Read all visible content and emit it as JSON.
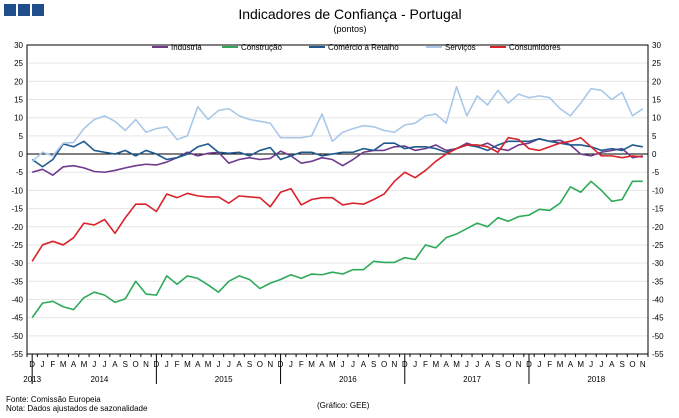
{
  "header": {
    "title": "Indicadores de Confiança - Portugal",
    "subtitle": "(pontos)"
  },
  "footer": {
    "source": "Fonte: Comissão Europeia",
    "note": "Nota: Dados ajustados de sazonalidade",
    "credit": "(Gráfico: GEE)"
  },
  "chart_data": {
    "type": "line",
    "title": "Indicadores de Confiança - Portugal",
    "ylabel": "(pontos)",
    "ylim": [
      -55,
      30
    ],
    "yticks": [
      30,
      25,
      20,
      15,
      10,
      5,
      0,
      -5,
      -10,
      -15,
      -20,
      -25,
      -30,
      -35,
      -40,
      -45,
      -50,
      -55
    ],
    "grid": true,
    "legend_position": "top",
    "month_labels": [
      "D",
      "J",
      "F",
      "M",
      "A",
      "M",
      "J",
      "J",
      "A",
      "S",
      "O",
      "N",
      "D",
      "J",
      "F",
      "M",
      "A",
      "M",
      "J",
      "J",
      "A",
      "S",
      "O",
      "N",
      "D",
      "J",
      "F",
      "M",
      "A",
      "M",
      "J",
      "J",
      "A",
      "S",
      "O",
      "N",
      "D",
      "J",
      "F",
      "M",
      "A",
      "M",
      "J",
      "J",
      "A",
      "S",
      "O",
      "N",
      "D",
      "J",
      "F",
      "M",
      "A",
      "M",
      "J",
      "J",
      "A",
      "S",
      "O",
      "N"
    ],
    "year_labels": [
      {
        "label": "2013",
        "index": 0
      },
      {
        "label": "2014",
        "index": 6.5
      },
      {
        "label": "2015",
        "index": 18.5
      },
      {
        "label": "2016",
        "index": 30.5
      },
      {
        "label": "2017",
        "index": 42.5
      },
      {
        "label": "2018",
        "index": 54.5
      }
    ],
    "year_separators": [
      0.5,
      12.5,
      24.5,
      36.5,
      48.5
    ],
    "series": [
      {
        "name": "Indústria",
        "color": "#6f3a8c",
        "values": [
          -5.0,
          -4.2,
          -5.8,
          -3.5,
          -3.2,
          -3.8,
          -4.8,
          -5.0,
          -4.5,
          -3.8,
          -3.2,
          -2.8,
          -3.0,
          -2.2,
          -1.0,
          0.5,
          -0.5,
          0.2,
          0.5,
          -2.5,
          -1.5,
          -1.0,
          -1.5,
          -1.2,
          0.8,
          -0.5,
          -2.5,
          -2.0,
          -1.0,
          -1.5,
          -3.2,
          -1.5,
          0.5,
          1.0,
          1.0,
          2.0,
          2.2,
          1.0,
          1.5,
          2.5,
          1.0,
          1.5,
          3.0,
          2.0,
          3.0,
          1.5,
          1.0,
          2.5,
          3.0,
          4.2,
          3.5,
          3.8,
          2.5,
          0.0,
          -0.5,
          0.5,
          1.0,
          1.5,
          -1.0,
          -0.5
        ]
      },
      {
        "name": "Construção",
        "color": "#2eaa5a",
        "values": [
          -45.0,
          -41.0,
          -40.5,
          -42.0,
          -42.8,
          -39.5,
          -38.0,
          -38.8,
          -40.8,
          -39.8,
          -35.0,
          -38.5,
          -38.8,
          -33.5,
          -35.8,
          -33.5,
          -34.2,
          -36.0,
          -38.0,
          -35.0,
          -33.5,
          -34.5,
          -37.0,
          -35.5,
          -34.5,
          -33.2,
          -34.2,
          -33.0,
          -33.2,
          -32.5,
          -33.0,
          -31.8,
          -31.8,
          -29.5,
          -29.8,
          -29.8,
          -28.5,
          -29.0,
          -25.0,
          -25.8,
          -23.0,
          -22.0,
          -20.5,
          -19.0,
          -20.0,
          -17.5,
          -18.5,
          -17.2,
          -16.8,
          -15.2,
          -15.5,
          -13.5,
          -9.0,
          -10.5,
          -7.5,
          -10.0,
          -13.0,
          -12.5,
          -7.5,
          -7.5
        ]
      },
      {
        "name": "Comércio a Retalho",
        "color": "#1f5a8f",
        "values": [
          -1.5,
          -3.5,
          -1.5,
          2.8,
          2.0,
          3.5,
          1.0,
          0.5,
          0.0,
          1.0,
          -0.5,
          1.0,
          0.0,
          -1.5,
          -1.0,
          0.0,
          2.0,
          2.8,
          0.5,
          0.2,
          0.5,
          -0.5,
          1.0,
          1.8,
          -1.5,
          -0.5,
          0.5,
          0.5,
          -0.5,
          0.0,
          0.5,
          0.5,
          1.5,
          1.0,
          3.0,
          3.0,
          1.5,
          2.0,
          2.0,
          1.5,
          0.5,
          1.5,
          2.5,
          2.0,
          1.0,
          2.5,
          3.5,
          3.5,
          3.5,
          4.2,
          3.5,
          3.0,
          2.5,
          2.5,
          2.0,
          1.0,
          1.5,
          1.0,
          2.5,
          2.0
        ]
      },
      {
        "name": "Serviços",
        "color": "#a9c8e8",
        "values": [
          -2.0,
          0.5,
          -0.5,
          3.0,
          3.2,
          7.0,
          9.5,
          10.5,
          9.0,
          6.5,
          9.5,
          6.0,
          7.0,
          7.5,
          4.0,
          5.0,
          13.0,
          9.5,
          12.0,
          12.5,
          10.5,
          9.5,
          9.0,
          8.5,
          4.5,
          4.5,
          4.5,
          5.0,
          11.0,
          3.5,
          6.0,
          7.0,
          7.8,
          7.5,
          6.5,
          6.0,
          8.0,
          8.5,
          10.5,
          11.0,
          8.5,
          18.5,
          10.5,
          16.0,
          13.5,
          17.5,
          14.0,
          16.5,
          15.5,
          16.0,
          15.5,
          12.5,
          10.5,
          14.0,
          18.0,
          17.5,
          15.0,
          17.0,
          10.5,
          12.5
        ]
      },
      {
        "name": "Consumidores",
        "color": "#d9232a",
        "values": [
          -29.5,
          -25.0,
          -24.0,
          -25.0,
          -23.0,
          -19.0,
          -19.5,
          -18.0,
          -21.8,
          -17.5,
          -13.8,
          -13.8,
          -15.8,
          -11.0,
          -12.0,
          -10.8,
          -11.5,
          -11.8,
          -11.8,
          -13.5,
          -11.5,
          -11.8,
          -12.0,
          -14.5,
          -10.5,
          -9.5,
          -14.0,
          -12.5,
          -12.0,
          -12.0,
          -14.0,
          -13.5,
          -13.8,
          -12.5,
          -11.0,
          -7.5,
          -5.0,
          -6.5,
          -4.5,
          -2.0,
          0.0,
          1.5,
          2.5,
          2.5,
          2.0,
          0.5,
          4.5,
          4.0,
          1.5,
          1.0,
          2.0,
          3.0,
          3.5,
          4.5,
          2.0,
          -0.5,
          -0.5,
          -1.0,
          -0.5,
          -0.8
        ]
      }
    ]
  }
}
